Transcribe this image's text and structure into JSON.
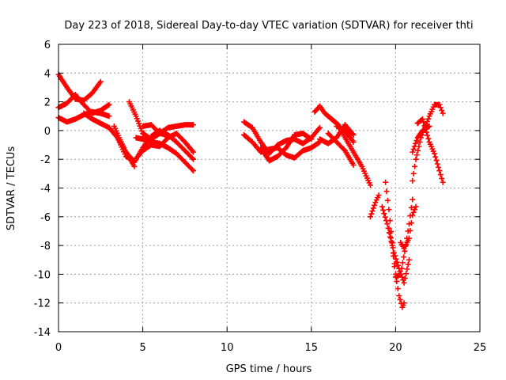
{
  "chart_data": {
    "type": "scatter",
    "title": "Day 223 of 2018, Sidereal Day-to-day VTEC variation (SDTVAR) for receiver thti",
    "xlabel": "GPS time / hours",
    "ylabel": "SDTVAR / TECUs",
    "xlim": [
      0,
      25
    ],
    "ylim": [
      -14,
      6
    ],
    "xticks": [
      "0",
      "5",
      "10",
      "15",
      "20",
      "25"
    ],
    "yticks": [
      "6",
      "4",
      "2",
      "0",
      "-2",
      "-4",
      "-6",
      "-8",
      "-10",
      "-12",
      "-14"
    ],
    "grid": true,
    "marker": "+",
    "color": "#ff0000",
    "tracks": [
      {
        "x": [
          0.0,
          0.5,
          1.0,
          1.5,
          2.0,
          2.5
        ],
        "y": [
          3.9,
          3.0,
          2.2,
          2.1,
          2.6,
          3.4
        ]
      },
      {
        "x": [
          0.0,
          0.5,
          1.0,
          1.5,
          2.0,
          2.5,
          3.0
        ],
        "y": [
          1.6,
          1.9,
          2.5,
          1.8,
          1.2,
          1.4,
          1.8
        ]
      },
      {
        "x": [
          0.0,
          0.5,
          1.0,
          1.5,
          2.0,
          2.5,
          3.0
        ],
        "y": [
          0.9,
          0.6,
          0.8,
          1.1,
          1.3,
          1.2,
          1.0
        ]
      },
      {
        "x": [
          1.5,
          2.0,
          2.5,
          3.0,
          3.5,
          4.0,
          4.5
        ],
        "y": [
          1.2,
          0.8,
          0.5,
          0.2,
          -0.5,
          -1.5,
          -2.5
        ]
      },
      {
        "x": [
          3.3,
          3.6,
          4.0,
          4.5,
          5.0,
          5.5,
          6.0,
          6.5
        ],
        "y": [
          0.3,
          -0.5,
          -1.5,
          -2.2,
          -1.2,
          -0.4,
          0.0,
          -0.5
        ]
      },
      {
        "x": [
          3.5,
          4.0,
          4.5,
          5.0,
          5.5,
          6.0,
          6.5,
          7.0,
          7.5,
          8.0
        ],
        "y": [
          -0.5,
          -1.8,
          -2.1,
          -1.4,
          -1.0,
          -1.1,
          -0.5,
          -0.2,
          -0.8,
          -1.5
        ]
      },
      {
        "x": [
          4.2,
          4.6,
          5.0,
          5.5,
          6.0,
          6.5,
          7.0,
          7.5,
          8.0
        ],
        "y": [
          2.0,
          1.0,
          -0.2,
          -0.6,
          -0.2,
          0.2,
          0.3,
          0.4,
          0.4
        ]
      },
      {
        "x": [
          4.6,
          5.0,
          5.5,
          6.0,
          6.5,
          7.0,
          7.5,
          8.0
        ],
        "y": [
          -0.5,
          -0.6,
          -0.8,
          -0.9,
          -1.2,
          -1.6,
          -2.2,
          -2.8
        ]
      },
      {
        "x": [
          5.0,
          5.5,
          6.0,
          6.5,
          7.0,
          7.5,
          8.0
        ],
        "y": [
          0.3,
          0.4,
          -0.2,
          -0.3,
          -0.8,
          -1.4,
          -2.0
        ]
      },
      {
        "x": [
          11.0,
          11.5,
          12.0,
          12.5,
          13.0,
          13.5,
          14.0,
          14.5,
          15.0,
          15.5
        ],
        "y": [
          0.6,
          0.2,
          -0.8,
          -1.6,
          -1.0,
          -0.7,
          -0.6,
          -0.9,
          -0.5,
          0.2
        ]
      },
      {
        "x": [
          11.0,
          11.5,
          12.0,
          12.5,
          13.0,
          13.5,
          14.0,
          14.5,
          15.0,
          15.5
        ],
        "y": [
          -0.3,
          -0.8,
          -1.5,
          -1.3,
          -1.2,
          -1.7,
          -1.9,
          -1.4,
          -1.2,
          -0.8
        ]
      },
      {
        "x": [
          12.0,
          12.5,
          13.0,
          13.5,
          14.0,
          14.5,
          15.0
        ],
        "y": [
          -1.2,
          -2.1,
          -1.8,
          -1.2,
          -0.3,
          -0.2,
          -0.6
        ]
      },
      {
        "x": [
          15.2,
          15.5,
          15.8,
          16.2,
          16.6,
          17.0,
          17.5,
          18.0,
          18.5
        ],
        "y": [
          1.3,
          1.7,
          1.2,
          0.8,
          0.4,
          -0.5,
          -1.5,
          -2.5,
          -3.8
        ]
      },
      {
        "x": [
          15.5,
          16.0,
          16.5,
          17.0,
          17.5
        ],
        "y": [
          -0.6,
          -0.9,
          -0.5,
          0.4,
          -0.3
        ]
      },
      {
        "x": [
          16.0,
          16.5,
          17.0,
          17.5
        ],
        "y": [
          -0.2,
          -0.8,
          -1.4,
          -2.4
        ]
      },
      {
        "x": [
          16.5,
          17.0,
          17.5
        ],
        "y": [
          0.3,
          0.0,
          -0.8
        ]
      },
      {
        "x": [
          18.5,
          18.8,
          19.0
        ],
        "y": [
          -6.0,
          -5.0,
          -4.5
        ]
      },
      {
        "x": [
          19.2,
          19.5,
          19.8,
          20.0,
          20.3,
          20.6,
          20.8,
          21.0
        ],
        "y": [
          -5.3,
          -6.5,
          -8.0,
          -10.2,
          -10.0,
          -8.0,
          -6.5,
          -4.8
        ]
      },
      {
        "x": [
          19.4,
          19.6,
          19.8,
          20.0,
          20.2,
          20.4,
          20.5
        ],
        "y": [
          -3.6,
          -5.5,
          -7.8,
          -10.0,
          -11.5,
          -12.3,
          -12.0
        ]
      },
      {
        "x": [
          19.6,
          19.9,
          20.2,
          20.5,
          20.8
        ],
        "y": [
          -6.8,
          -8.5,
          -9.6,
          -10.6,
          -9.0
        ]
      },
      {
        "x": [
          20.3,
          20.5,
          20.8,
          21.0,
          21.2
        ],
        "y": [
          -7.8,
          -8.2,
          -7.5,
          -5.9,
          -5.3
        ]
      },
      {
        "x": [
          21.0,
          21.2,
          21.5,
          22.0,
          22.3,
          22.6,
          22.8
        ],
        "y": [
          -3.5,
          -2.0,
          -0.5,
          1.0,
          1.8,
          1.8,
          1.2
        ]
      },
      {
        "x": [
          21.3,
          21.6,
          22.0,
          22.3,
          22.6,
          22.8
        ],
        "y": [
          0.5,
          0.8,
          -0.8,
          -1.6,
          -2.8,
          -3.6
        ]
      },
      {
        "x": [
          21.0,
          21.3,
          21.6,
          22.0
        ],
        "y": [
          -1.5,
          -0.5,
          0.0,
          0.3
        ]
      }
    ]
  }
}
